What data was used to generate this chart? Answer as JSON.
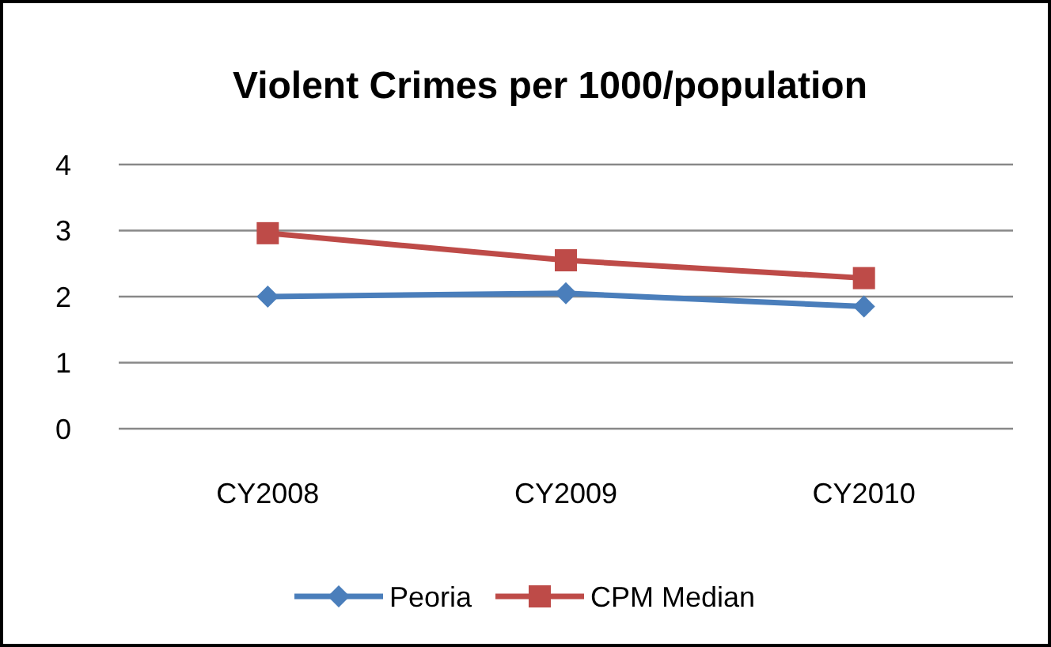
{
  "chart_data": {
    "type": "line",
    "title": "Violent Crimes per 1000/population",
    "categories": [
      "CY2008",
      "CY2009",
      "CY2010"
    ],
    "series": [
      {
        "name": "Peoria",
        "color": "#4a7ebb",
        "values": [
          2.0,
          2.05,
          1.85
        ],
        "marker": "diamond"
      },
      {
        "name": "CPM Median",
        "color": "#be4b48",
        "values": [
          2.96,
          2.55,
          2.28
        ],
        "marker": "square"
      }
    ],
    "ylim": [
      0,
      4
    ],
    "yticks": [
      0,
      1,
      2,
      3,
      4
    ],
    "grid": "y",
    "legend": "bottom"
  }
}
